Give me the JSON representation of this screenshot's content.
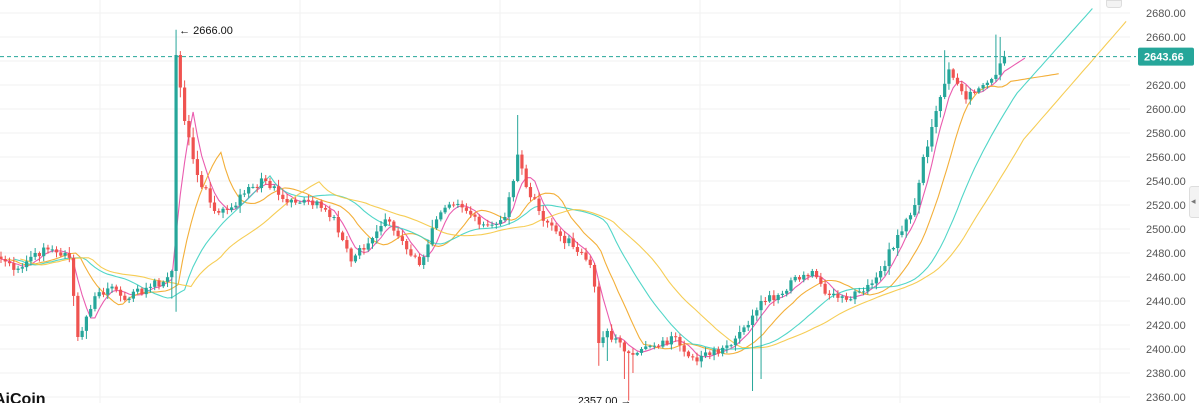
{
  "watermark": "AiCoin",
  "colors": {
    "up": "#26a69a",
    "down": "#ef5350",
    "ma1": "#e84aa6",
    "ma2": "#f2a623",
    "ma3": "#3ed1c2",
    "ma4": "#f5c842",
    "grid": "#f2f2f2",
    "price_line": "#26a69a"
  },
  "current_price_label": "2643.66",
  "chart_data": {
    "type": "candlestick",
    "ylim": [
      2355,
      2690
    ],
    "y_ticks": [
      "2680.00",
      "2660.00",
      "2640.00",
      "2620.00",
      "2600.00",
      "2580.00",
      "2560.00",
      "2540.00",
      "2520.00",
      "2500.00",
      "2480.00",
      "2460.00",
      "2440.00",
      "2420.00",
      "2400.00",
      "2380.00",
      "2360.00"
    ],
    "current_price": 2643.66,
    "high_annotation": {
      "label": "← 2666.00",
      "value": 2666.0
    },
    "low_annotation": {
      "label": "2357.00 →",
      "value": 2357.0
    },
    "ma_periods": [
      5,
      10,
      20,
      30
    ],
    "close_path": [
      [
        0,
        2475
      ],
      [
        4,
        2467
      ],
      [
        8,
        2480
      ],
      [
        12,
        2483
      ],
      [
        16,
        2476
      ],
      [
        18,
        2410
      ],
      [
        22,
        2444
      ],
      [
        26,
        2452
      ],
      [
        30,
        2442
      ],
      [
        34,
        2451
      ],
      [
        38,
        2456
      ],
      [
        40,
        2465
      ],
      [
        41,
        2645
      ],
      [
        43,
        2590
      ],
      [
        46,
        2545
      ],
      [
        50,
        2515
      ],
      [
        54,
        2518
      ],
      [
        58,
        2535
      ],
      [
        62,
        2540
      ],
      [
        66,
        2525
      ],
      [
        70,
        2522
      ],
      [
        74,
        2523
      ],
      [
        78,
        2510
      ],
      [
        82,
        2473
      ],
      [
        86,
        2488
      ],
      [
        90,
        2508
      ],
      [
        94,
        2490
      ],
      [
        98,
        2470
      ],
      [
        102,
        2508
      ],
      [
        106,
        2520
      ],
      [
        110,
        2512
      ],
      [
        114,
        2503
      ],
      [
        118,
        2510
      ],
      [
        120,
        2540
      ],
      [
        121,
        2562
      ],
      [
        123,
        2535
      ],
      [
        126,
        2515
      ],
      [
        130,
        2498
      ],
      [
        134,
        2485
      ],
      [
        138,
        2470
      ],
      [
        139,
        2452
      ],
      [
        140,
        2405
      ],
      [
        142,
        2415
      ],
      [
        146,
        2398
      ],
      [
        150,
        2400
      ],
      [
        154,
        2402
      ],
      [
        158,
        2410
      ],
      [
        162,
        2393
      ],
      [
        166,
        2395
      ],
      [
        170,
        2403
      ],
      [
        174,
        2418
      ],
      [
        178,
        2440
      ],
      [
        182,
        2445
      ],
      [
        186,
        2460
      ],
      [
        190,
        2465
      ],
      [
        194,
        2445
      ],
      [
        198,
        2441
      ],
      [
        202,
        2448
      ],
      [
        206,
        2465
      ],
      [
        210,
        2495
      ],
      [
        212,
        2508
      ],
      [
        214,
        2520
      ],
      [
        216,
        2560
      ],
      [
        218,
        2585
      ],
      [
        220,
        2610
      ],
      [
        222,
        2633
      ],
      [
        224,
        2621
      ],
      [
        226,
        2608
      ],
      [
        228,
        2614
      ],
      [
        230,
        2620
      ],
      [
        232,
        2625
      ],
      [
        234,
        2638
      ],
      [
        235,
        2643.66
      ]
    ]
  }
}
